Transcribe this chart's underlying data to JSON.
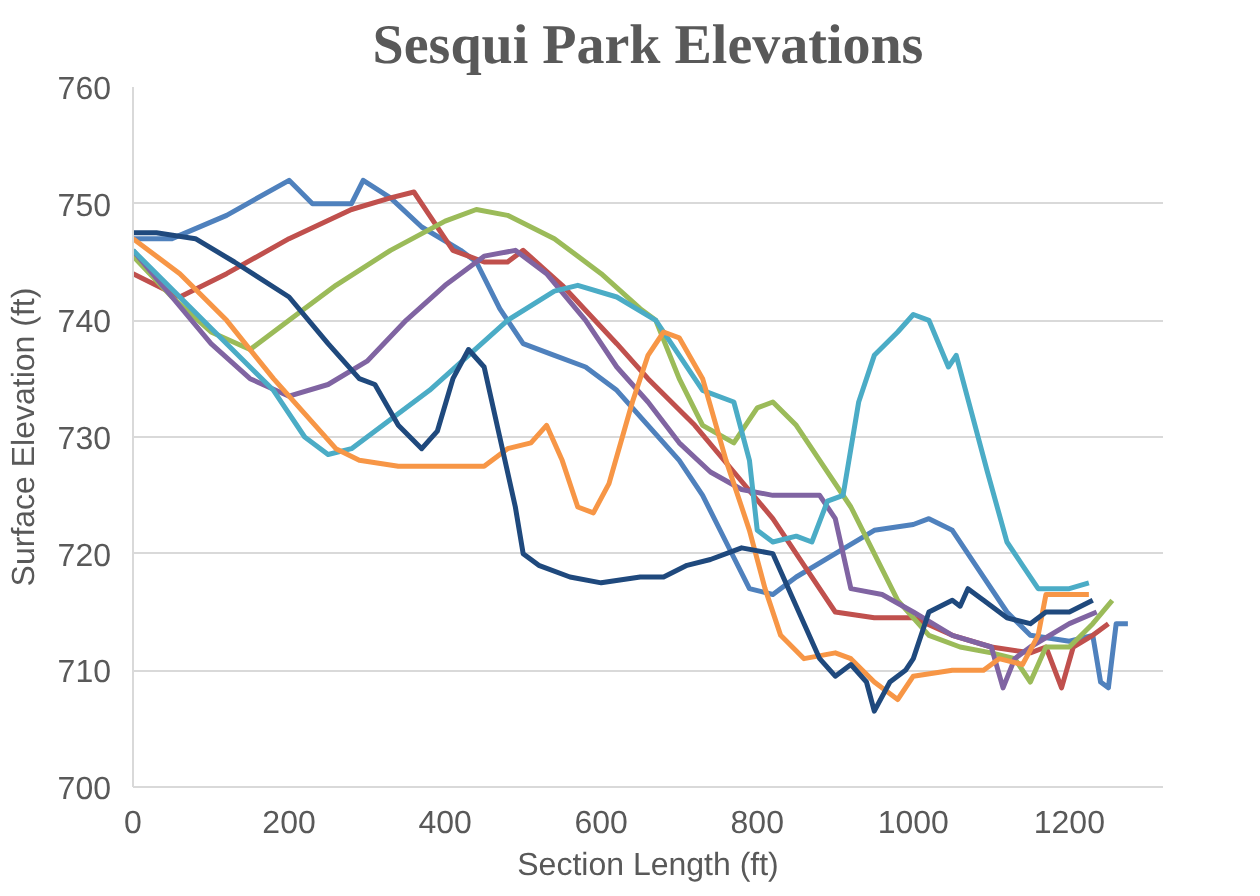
{
  "chart_data": {
    "type": "line",
    "title": "Sesqui Park Elevations",
    "xlabel": "Section Length (ft)",
    "ylabel": "Surface Elevation (ft)",
    "xlim": [
      0,
      1320
    ],
    "xticks": [
      0,
      200,
      400,
      600,
      800,
      1000,
      1200
    ],
    "ylim": [
      700,
      760
    ],
    "yticks": [
      700,
      710,
      720,
      730,
      740,
      750,
      760
    ],
    "grid": "y",
    "marker": "none",
    "line_style": "solid",
    "series": [
      {
        "color": "#4f81bd",
        "x": [
          0,
          50,
          120,
          200,
          230,
          280,
          295,
          330,
          370,
          420,
          440,
          470,
          500,
          540,
          580,
          620,
          660,
          700,
          730,
          760,
          790,
          820,
          850,
          900,
          950,
          1000,
          1020,
          1050,
          1080,
          1120,
          1150,
          1200,
          1230,
          1240,
          1250,
          1260,
          1275
        ],
        "values": [
          747,
          747,
          749,
          752,
          750,
          750,
          752,
          750.5,
          748,
          746,
          745,
          741,
          738,
          737,
          736,
          734,
          731,
          728,
          725,
          721,
          717,
          716.5,
          718,
          720,
          722,
          722.5,
          723,
          722,
          719,
          715,
          713,
          712.5,
          713,
          709,
          708.5,
          714,
          714
        ]
      },
      {
        "color": "#c0504d",
        "x": [
          0,
          60,
          120,
          200,
          280,
          330,
          360,
          380,
          410,
          450,
          480,
          500,
          550,
          620,
          660,
          720,
          770,
          820,
          860,
          900,
          950,
          1000,
          1050,
          1100,
          1150,
          1170,
          1190,
          1205,
          1230,
          1250
        ],
        "values": [
          744,
          742,
          744,
          747,
          749.5,
          750.5,
          751,
          749,
          746,
          745,
          745,
          746,
          743,
          738,
          735,
          731,
          727,
          723,
          719,
          715,
          714.5,
          714.5,
          713,
          712,
          711.5,
          712,
          708.5,
          712,
          713,
          714
        ]
      },
      {
        "color": "#9bbb59",
        "x": [
          0,
          50,
          100,
          150,
          200,
          260,
          330,
          400,
          440,
          480,
          540,
          600,
          650,
          670,
          700,
          730,
          770,
          800,
          820,
          850,
          880,
          920,
          950,
          980,
          1020,
          1060,
          1100,
          1130,
          1150,
          1170,
          1200,
          1230,
          1255
        ],
        "values": [
          745.5,
          742,
          739,
          737.5,
          740,
          743,
          746,
          748.5,
          749.5,
          749,
          747,
          744,
          741,
          740,
          735,
          731,
          729.5,
          732.5,
          733,
          731,
          728,
          724,
          720,
          716,
          713,
          712,
          711.5,
          711,
          709,
          712,
          712,
          714,
          716
        ]
      },
      {
        "color": "#8064a2",
        "x": [
          0,
          50,
          100,
          150,
          200,
          250,
          300,
          350,
          400,
          450,
          490,
          530,
          580,
          620,
          660,
          700,
          740,
          780,
          820,
          880,
          900,
          920,
          960,
          1000,
          1050,
          1100,
          1115,
          1130,
          1150,
          1200,
          1235
        ],
        "values": [
          746,
          742,
          738,
          735,
          733.5,
          734.5,
          736.5,
          740,
          743,
          745.5,
          746,
          744,
          740,
          736,
          733,
          729.5,
          727,
          725.5,
          725,
          725,
          723,
          717,
          716.5,
          715,
          713,
          712,
          708.5,
          711,
          712,
          714,
          715
        ]
      },
      {
        "color": "#4bacc6",
        "x": [
          0,
          60,
          120,
          180,
          220,
          250,
          280,
          330,
          380,
          430,
          480,
          540,
          570,
          620,
          670,
          700,
          730,
          770,
          790,
          800,
          820,
          850,
          870,
          890,
          910,
          930,
          950,
          980,
          1000,
          1020,
          1045,
          1055,
          1075,
          1095,
          1120,
          1140,
          1160,
          1200,
          1225
        ],
        "values": [
          746,
          742,
          738,
          734,
          730,
          728.5,
          729,
          731.5,
          734,
          737,
          740,
          742.5,
          743,
          742,
          740,
          737,
          734,
          733,
          728,
          722,
          721,
          721.5,
          721,
          724.5,
          725,
          733,
          737,
          739,
          740.5,
          740,
          736,
          737,
          732,
          727,
          721,
          719,
          717,
          717,
          717.5
        ]
      },
      {
        "color": "#f79646",
        "x": [
          0,
          60,
          120,
          180,
          220,
          260,
          290,
          340,
          400,
          450,
          480,
          510,
          530,
          550,
          570,
          590,
          610,
          640,
          660,
          680,
          700,
          730,
          760,
          790,
          810,
          830,
          860,
          900,
          920,
          950,
          980,
          1000,
          1050,
          1090,
          1110,
          1140,
          1160,
          1170,
          1225
        ],
        "values": [
          747,
          744,
          740,
          735,
          732,
          729,
          728,
          727.5,
          727.5,
          727.5,
          729,
          729.5,
          731,
          728,
          724,
          723.5,
          726,
          733,
          737,
          739,
          738.5,
          735,
          728,
          722,
          717,
          713,
          711,
          711.5,
          711,
          709,
          707.5,
          709.5,
          710,
          710,
          711,
          710.5,
          713,
          716.5,
          716.5
        ]
      },
      {
        "color": "#1f497d",
        "x": [
          0,
          30,
          80,
          130,
          200,
          250,
          290,
          310,
          340,
          370,
          390,
          410,
          430,
          450,
          470,
          490,
          500,
          520,
          560,
          600,
          650,
          680,
          710,
          740,
          780,
          820,
          840,
          860,
          880,
          900,
          920,
          940,
          950,
          970,
          990,
          1000,
          1020,
          1050,
          1060,
          1070,
          1090,
          1120,
          1150,
          1170,
          1200,
          1230
        ],
        "values": [
          747.5,
          747.5,
          747,
          745,
          742,
          738,
          735,
          734.5,
          731,
          729,
          730.5,
          735,
          737.5,
          736,
          730,
          724,
          720,
          719,
          718,
          717.5,
          718,
          718,
          719,
          719.5,
          720.5,
          720,
          717,
          714,
          711,
          709.5,
          710.5,
          709,
          706.5,
          709,
          710,
          711,
          715,
          716,
          715.5,
          717,
          716,
          714.5,
          714,
          715,
          715,
          716
        ]
      }
    ]
  }
}
